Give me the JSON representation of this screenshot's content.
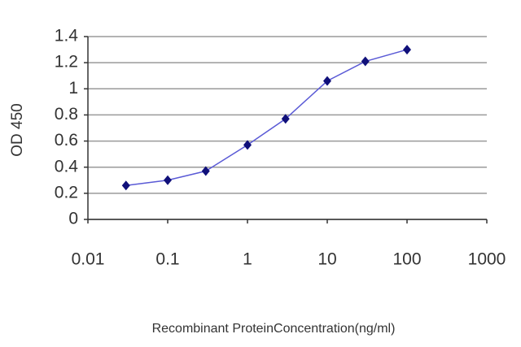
{
  "chart_data": {
    "type": "line",
    "x_label": "Recombinant ProteinConcentration(ng/ml)",
    "y_label": "OD 450",
    "x_scale": "log",
    "grid": true,
    "xlim": [
      0.01,
      1000
    ],
    "xticks": [
      0.01,
      0.1,
      1,
      10,
      100,
      1000
    ],
    "ylim": [
      0,
      1.4
    ],
    "yticks": [
      0,
      0.2,
      0.4,
      0.6,
      0.8,
      1,
      1.2,
      1.4
    ],
    "series": [
      {
        "color": "#5a5ad6",
        "marker_color": "#10107a",
        "x": [
          0.03,
          0.1,
          0.3,
          1,
          3,
          10,
          30,
          100
        ],
        "values": [
          0.26,
          0.3,
          0.37,
          0.57,
          0.77,
          1.06,
          1.21,
          1.3
        ]
      }
    ]
  }
}
